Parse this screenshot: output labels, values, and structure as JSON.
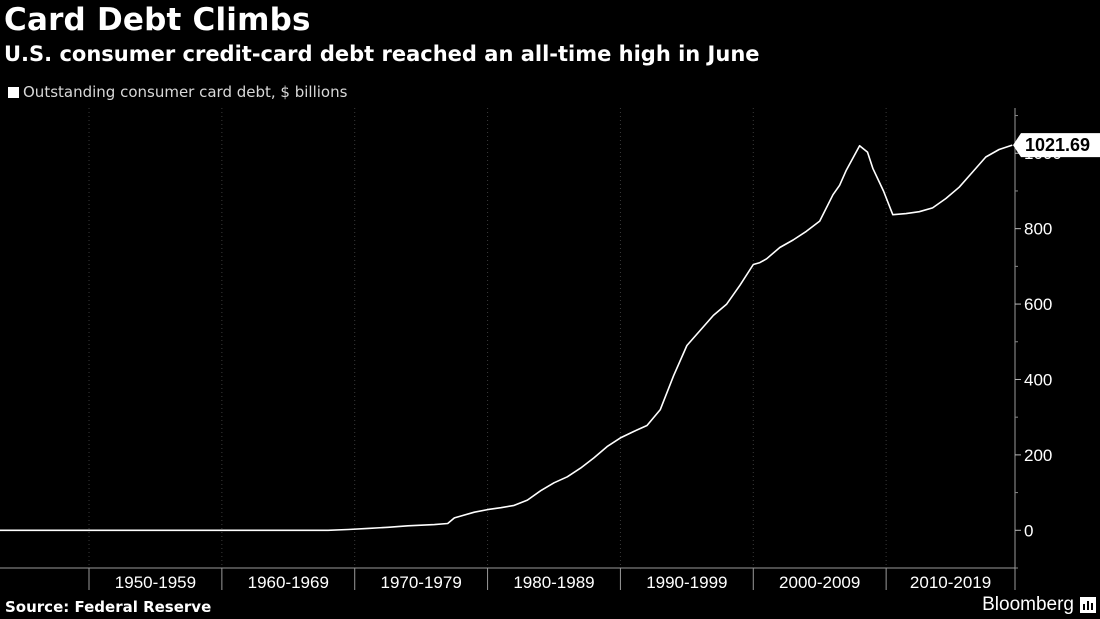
{
  "header": {
    "title": "Card Debt Climbs",
    "subtitle": "U.S. consumer credit-card debt reached an all-time high in June"
  },
  "legend": {
    "label": "Outstanding consumer card debt, $ billions",
    "color": "#ffffff"
  },
  "footer": {
    "source": "Source: Federal Reserve",
    "brand": "Bloomberg"
  },
  "colors": {
    "background": "#000000",
    "line": "#ffffff",
    "grid": "#3a3a3a"
  },
  "chart_data": {
    "type": "line",
    "x_categories": [
      "1950-1959",
      "1960-1969",
      "1970-1979",
      "1980-1989",
      "1990-1999",
      "2000-2009",
      "2010-2019"
    ],
    "y_ticks": [
      0,
      200,
      400,
      600,
      800,
      1000
    ],
    "ylim": [
      -100,
      1120
    ],
    "xlim": [
      1943.3,
      2019.7
    ],
    "grid": "vertical dotted at decade boundaries",
    "y_axis_position": "right",
    "callout": {
      "label": "1021.69",
      "x": 2019.5,
      "y": 1021.69
    },
    "series": [
      {
        "name": "Outstanding consumer card debt, $ billions",
        "color": "#ffffff",
        "x": [
          1943.3,
          1950.0,
          1960.0,
          1968.0,
          1969.5,
          1971.0,
          1972.5,
          1974.0,
          1976.0,
          1977.0,
          1977.5,
          1978.0,
          1979.0,
          1980.0,
          1981.0,
          1982.0,
          1983.0,
          1984.0,
          1985.0,
          1986.0,
          1987.0,
          1988.0,
          1989.0,
          1990.0,
          1991.0,
          1992.0,
          1993.0,
          1994.0,
          1995.0,
          1996.0,
          1997.0,
          1998.0,
          1999.0,
          2000.0,
          2000.5,
          2001.0,
          2002.0,
          2003.0,
          2004.0,
          2005.0,
          2006.0,
          2006.5,
          2007.0,
          2008.0,
          2008.6,
          2009.0,
          2009.8,
          2010.5,
          2011.5,
          2012.5,
          2013.5,
          2014.5,
          2015.5,
          2016.5,
          2017.5,
          2018.5,
          2019.5
        ],
        "y": [
          0,
          0,
          0,
          0,
          2,
          5,
          8,
          12,
          15,
          18,
          33,
          38,
          48,
          55,
          60,
          66,
          80,
          105,
          126,
          142,
          165,
          192,
          222,
          245,
          262,
          278,
          320,
          410,
          490,
          530,
          570,
          600,
          650,
          705,
          710,
          720,
          750,
          770,
          793,
          820,
          890,
          915,
          955,
          1020,
          1003,
          960,
          900,
          837,
          840,
          845,
          855,
          880,
          910,
          950,
          990,
          1010,
          1021.69
        ]
      }
    ]
  }
}
